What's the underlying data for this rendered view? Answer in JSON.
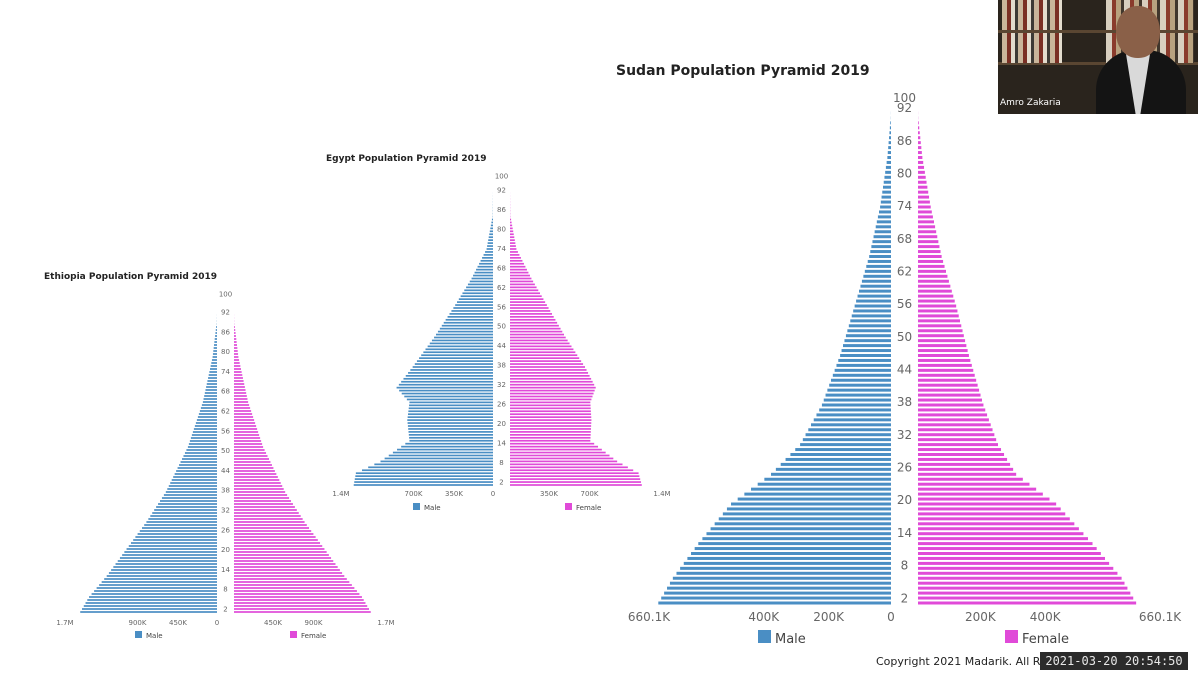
{
  "chart_data": [
    {
      "id": "ethiopia",
      "type": "population-pyramid",
      "title": "Ethiopia Population Pyramid 2019",
      "age_ticks": [
        "100",
        "92",
        "86",
        "80",
        "74",
        "68",
        "62",
        "56",
        "50",
        "44",
        "38",
        "32",
        "26",
        "20",
        "14",
        "8",
        "2"
      ],
      "male_axis_labels": [
        "1.7M",
        "900K",
        "450K",
        "0"
      ],
      "female_axis_labels": [
        "450K",
        "900K",
        "1.7M"
      ],
      "axis_max": 1700000,
      "legend": [
        "Male",
        "Female"
      ],
      "age_breakpoints": [
        0,
        5,
        12,
        20,
        30,
        40,
        55,
        70,
        85,
        95
      ],
      "male_values": [
        1550000,
        1450000,
        1250000,
        1050000,
        800000,
        580000,
        330000,
        160000,
        50000,
        10000
      ],
      "female_values": [
        1550000,
        1450000,
        1250000,
        1050000,
        800000,
        580000,
        330000,
        160000,
        50000,
        10000
      ]
    },
    {
      "id": "egypt",
      "type": "population-pyramid",
      "title": "Egypt Population Pyramid 2019",
      "age_ticks": [
        "100",
        "92",
        "86",
        "80",
        "74",
        "68",
        "62",
        "56",
        "50",
        "44",
        "38",
        "32",
        "26",
        "20",
        "14",
        "8",
        "2"
      ],
      "male_axis_labels": [
        "1.4M",
        "700K",
        "350K",
        "0"
      ],
      "female_axis_labels": [
        "350K",
        "700K",
        "1.4M"
      ],
      "axis_max": 1400000,
      "legend": [
        "Male",
        "Female"
      ],
      "age_breakpoints": [
        0,
        4,
        8,
        15,
        22,
        28,
        33,
        40,
        50,
        60,
        70,
        80,
        90
      ],
      "male_values": [
        1300000,
        1280000,
        1050000,
        780000,
        800000,
        780000,
        900000,
        750000,
        550000,
        370000,
        200000,
        60000,
        10000
      ],
      "female_values": [
        1230000,
        1200000,
        1000000,
        750000,
        760000,
        750000,
        800000,
        700000,
        520000,
        360000,
        200000,
        60000,
        10000
      ]
    },
    {
      "id": "sudan",
      "type": "population-pyramid",
      "title": "Sudan Population Pyramid 2019",
      "age_ticks": [
        "100",
        "92",
        "86",
        "80",
        "74",
        "68",
        "62",
        "56",
        "50",
        "44",
        "38",
        "32",
        "26",
        "20",
        "14",
        "8",
        "2"
      ],
      "male_axis_labels": [
        "660.1K",
        "400K",
        "200K",
        "0"
      ],
      "female_axis_labels": [
        "200K",
        "400K",
        "660.1K"
      ],
      "axis_max": 660100,
      "legend": [
        "Male",
        "Female"
      ],
      "age_breakpoints": [
        0,
        5,
        12,
        20,
        26,
        32,
        40,
        50,
        60,
        70,
        80,
        90,
        97
      ],
      "male_values": [
        640000,
        600000,
        530000,
        440000,
        330000,
        250000,
        190000,
        140000,
        100000,
        60000,
        30000,
        10000,
        2000
      ],
      "female_values": [
        600000,
        560000,
        480000,
        380000,
        270000,
        220000,
        180000,
        140000,
        105000,
        65000,
        35000,
        12000,
        2000
      ]
    }
  ],
  "colors": {
    "male": "#4a8ec4",
    "female": "#e04ad8",
    "title": "#222222",
    "axis_text": "#666666"
  },
  "webcam": {
    "name": "Amro Zakaria"
  },
  "footer": {
    "copyright": "Copyright 2021 Madarik. All R",
    "timestamp": "2021-03-20  20:54:50"
  }
}
